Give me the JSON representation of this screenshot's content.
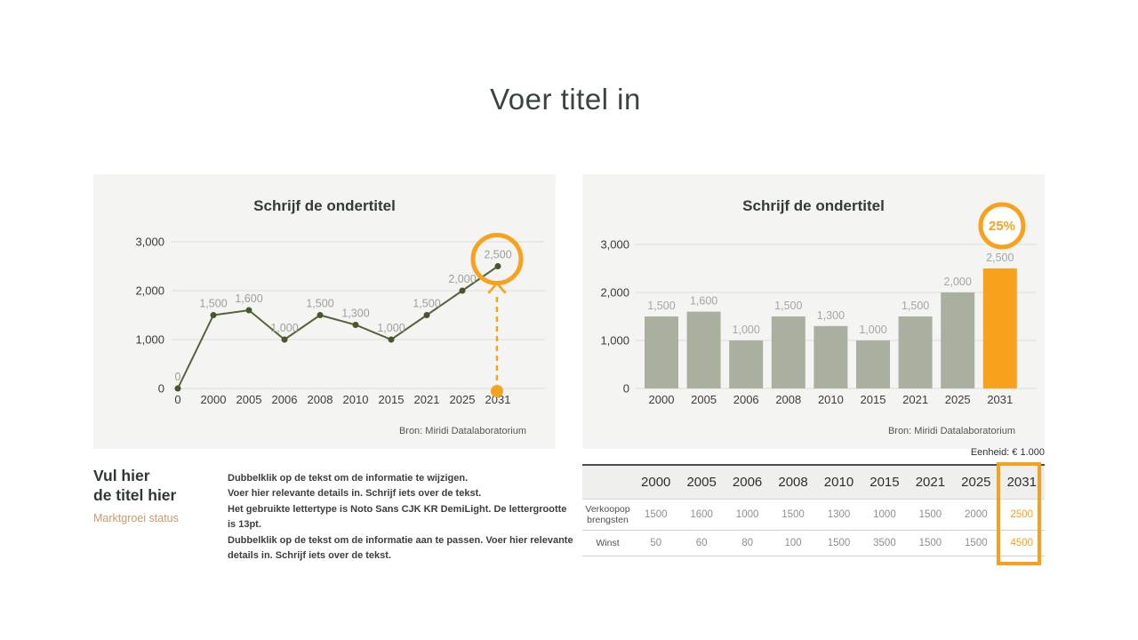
{
  "page": {
    "title": "Voer titel in"
  },
  "colors": {
    "accent_orange": "#F7A11D",
    "line_green": "#55633A",
    "marker_green": "#47562C",
    "bar_sage": "#A9B0A0",
    "panel_bg": "#F4F5F3",
    "grid_gray": "#DBDBDB",
    "data_label_gray": "#9E9E9E",
    "subheading_tan": "#C79B6C"
  },
  "chart_data": [
    {
      "type": "line",
      "title": "Schrijf de ondertitel",
      "categories": [
        "0",
        "2000",
        "2005",
        "2006",
        "2008",
        "2010",
        "2015",
        "2021",
        "2025",
        "2031"
      ],
      "values": [
        0,
        1500,
        1600,
        1000,
        1500,
        1300,
        1000,
        1500,
        2000,
        2500
      ],
      "labels": [
        "0",
        "1,500",
        "1,600",
        "1,000",
        "1,500",
        "1,300",
        "1,000",
        "1,500",
        "2,000",
        "2,500"
      ],
      "xlabel": "",
      "ylabel": "",
      "ylim": [
        0,
        3000
      ],
      "yticks": [
        "0",
        "1,000",
        "2,000",
        "3,000"
      ],
      "grid": true,
      "legend": false,
      "source": "Bron: Miridi Datalaboratorium",
      "annotation": {
        "highlight_index": 9,
        "style": "orange-circle-with-dashed-up-arrow"
      }
    },
    {
      "type": "bar",
      "title": "Schrijf de ondertitel",
      "categories": [
        "2000",
        "2005",
        "2006",
        "2008",
        "2010",
        "2015",
        "2021",
        "2025",
        "2031"
      ],
      "values": [
        1500,
        1600,
        1000,
        1500,
        1300,
        1000,
        1500,
        2000,
        2500
      ],
      "labels": [
        "1,500",
        "1,600",
        "1,000",
        "1,500",
        "1,300",
        "1,000",
        "1,500",
        "2,000",
        "2,500"
      ],
      "xlabel": "",
      "ylabel": "",
      "ylim": [
        0,
        3000
      ],
      "yticks": [
        "0",
        "1,000",
        "2,000",
        "3,000"
      ],
      "grid": true,
      "legend": false,
      "source": "Bron: Miridi Datalaboratorium",
      "annotation": {
        "highlight_index": 8,
        "badge": "25%"
      }
    }
  ],
  "left_block": {
    "heading_line1": "Vul hier",
    "heading_line2": "de titel hier",
    "subheading": "Marktgroei status",
    "body_lines": [
      "Dubbelklik op de tekst om de informatie te wijzigen.",
      "Voer hier relevante details in. Schrijf iets over de tekst.",
      "Het gebruikte lettertype is Noto Sans CJK KR DemiLight. De lettergrootte is 13pt.",
      "Dubbelklik op de tekst om de informatie aan te passen. Voer hier relevante",
      "details in. Schrijf iets over de tekst."
    ]
  },
  "table": {
    "unit_note": "Eenheid: € 1.000",
    "columns": [
      "",
      "2000",
      "2005",
      "2006",
      "2008",
      "2010",
      "2015",
      "2021",
      "2025",
      "2031"
    ],
    "rows": [
      {
        "label": "Verkoopop brengsten",
        "values": [
          "1500",
          "1600",
          "1000",
          "1500",
          "1300",
          "1000",
          "1500",
          "2000",
          "2500"
        ]
      },
      {
        "label": "Winst",
        "values": [
          "50",
          "60",
          "80",
          "100",
          "1500",
          "3500",
          "1500",
          "1500",
          "4500"
        ]
      }
    ],
    "highlight_column": "2031"
  }
}
